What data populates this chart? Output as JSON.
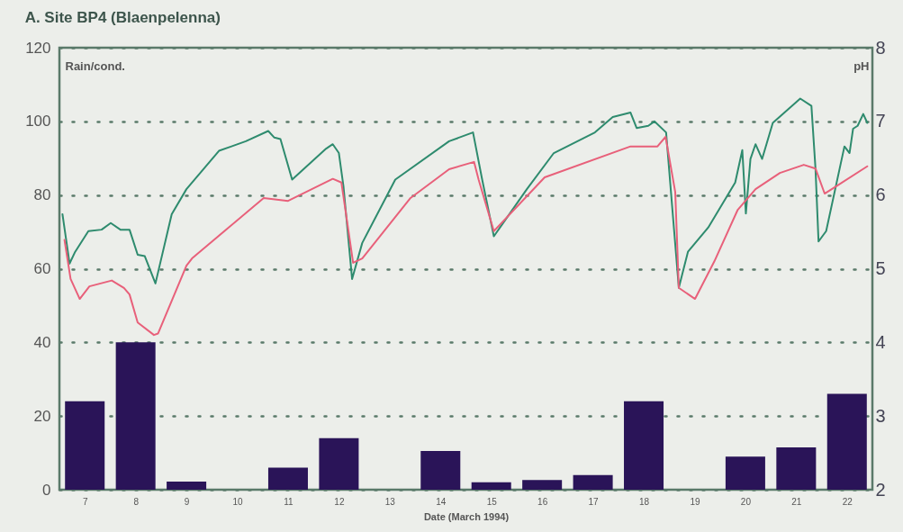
{
  "chart_data": {
    "type": "line",
    "title": "A. Site BP4 (Blaenpelenna)",
    "xlabel": "Date (March 1994)",
    "ylabel": "Rain/cond.",
    "y2label": "pH",
    "xlim": [
      6.5,
      22.5
    ],
    "xticks": [
      7,
      8,
      9,
      10,
      11,
      12,
      13,
      14,
      15,
      16,
      17,
      18,
      19,
      20,
      21,
      22
    ],
    "ylim": [
      0,
      120
    ],
    "yticks": [
      0,
      20,
      40,
      60,
      80,
      100,
      120
    ],
    "y2lim": [
      2,
      8
    ],
    "y2ticks": [
      2,
      3,
      4,
      5,
      6,
      7,
      8
    ],
    "grid": "y",
    "series": [
      {
        "type": "bar",
        "color": "#2a1458",
        "x": [
          7,
          8,
          9,
          10,
          11,
          12,
          13,
          14,
          15,
          16,
          17,
          18,
          19,
          20,
          21,
          22
        ],
        "values": [
          24,
          40,
          2.2,
          0,
          6,
          14,
          0,
          10.5,
          2,
          2.6,
          4,
          24,
          0,
          9,
          11.5,
          26
        ]
      },
      {
        "axis": "y2",
        "color": "#2e8b6e",
        "x": [
          6.56,
          6.7,
          6.81,
          7.07,
          7.33,
          7.51,
          7.7,
          7.88,
          8.04,
          8.18,
          8.39,
          8.71,
          9.0,
          9.64,
          10.17,
          10.61,
          10.73,
          10.85,
          11.08,
          11.75,
          11.88,
          12.0,
          12.09,
          12.26,
          12.46,
          13.11,
          14.17,
          14.64,
          14.82,
          15.05,
          15.7,
          16.23,
          17.04,
          17.39,
          17.74,
          17.86,
          18.09,
          18.21,
          18.44,
          18.69,
          18.87,
          19.27,
          19.8,
          19.94,
          20.01,
          20.1,
          20.2,
          20.33,
          20.54,
          21.08,
          21.3,
          21.38,
          21.44,
          21.59,
          21.95,
          22.05,
          22.12,
          22.21,
          22.32,
          22.4
        ],
        "values": [
          5.74,
          5.07,
          5.23,
          5.51,
          5.53,
          5.62,
          5.53,
          5.53,
          5.19,
          5.17,
          4.8,
          5.74,
          6.08,
          6.6,
          6.73,
          6.87,
          6.78,
          6.76,
          6.21,
          6.63,
          6.69,
          6.57,
          6.12,
          4.86,
          5.35,
          6.21,
          6.73,
          6.85,
          6.21,
          5.44,
          6.08,
          6.57,
          6.85,
          7.06,
          7.12,
          6.91,
          6.94,
          7.0,
          6.85,
          4.74,
          5.23,
          5.56,
          6.17,
          6.61,
          5.75,
          6.49,
          6.69,
          6.49,
          6.98,
          7.31,
          7.21,
          6.36,
          5.37,
          5.51,
          6.66,
          6.57,
          6.9,
          6.94,
          7.1,
          6.98
        ]
      },
      {
        "axis": "y2",
        "color": "#e8607a",
        "x": [
          6.6,
          6.72,
          6.9,
          7.09,
          7.53,
          7.77,
          7.88,
          8.04,
          8.36,
          8.44,
          9.0,
          9.11,
          10.52,
          11.0,
          11.88,
          12.05,
          12.28,
          12.46,
          13.41,
          14.17,
          14.66,
          14.75,
          15.05,
          16.05,
          17.74,
          18.27,
          18.43,
          18.62,
          18.69,
          19.01,
          19.39,
          19.85,
          20.2,
          20.68,
          21.15,
          21.38,
          21.56,
          21.79,
          22.4
        ],
        "values": [
          5.39,
          4.86,
          4.59,
          4.76,
          4.84,
          4.74,
          4.65,
          4.27,
          4.1,
          4.12,
          5.04,
          5.14,
          5.96,
          5.92,
          6.22,
          6.17,
          5.08,
          5.14,
          5.96,
          6.35,
          6.45,
          6.21,
          5.51,
          6.24,
          6.66,
          6.66,
          6.79,
          6.04,
          4.74,
          4.59,
          5.1,
          5.8,
          6.08,
          6.3,
          6.41,
          6.36,
          6.02,
          6.12,
          6.39
        ]
      }
    ]
  }
}
